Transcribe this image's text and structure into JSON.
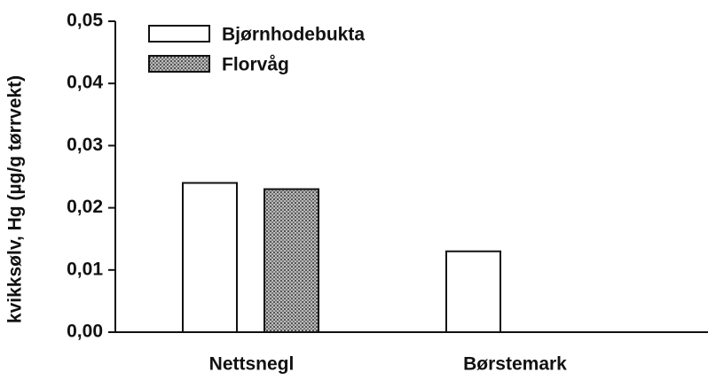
{
  "chart_data": {
    "type": "bar",
    "ylabel": "kvikksølv, Hg (µg/g tørrvekt)",
    "categories": [
      "Nettsnegl",
      "Børstemark"
    ],
    "series": [
      {
        "name": "Bjørnhodebukta",
        "color": "#ffffff",
        "values": [
          0.024,
          0.013
        ]
      },
      {
        "name": "Florvåg",
        "color": "#9a9a9a",
        "values": [
          0.023,
          null
        ]
      }
    ],
    "ylim": [
      0,
      0.05
    ],
    "yticks": [
      {
        "value": 0,
        "label": "0,00"
      },
      {
        "value": 0.01,
        "label": "0,01"
      },
      {
        "value": 0.02,
        "label": "0,02"
      },
      {
        "value": 0.03,
        "label": "0,03"
      },
      {
        "value": 0.04,
        "label": "0,04"
      },
      {
        "value": 0.05,
        "label": "0,05"
      }
    ],
    "legend": "upper left"
  }
}
